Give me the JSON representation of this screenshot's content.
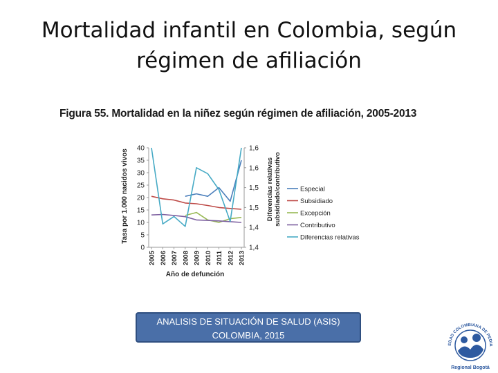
{
  "slide": {
    "title_line1": "Mortalidad infantil en Colombia, según",
    "title_line2": "régimen de afiliación",
    "figure_caption": "Figura 55. Mortalidad en la niñez según régimen de afiliación, 2005-2013",
    "source_line1": "ANALISIS DE SITUACIÓN DE SALUD (ASIS)",
    "source_line2": "COLOMBIA, 2015",
    "logo_text": "SOCIEDAD COLOMBIANA DE PEDIATRÍA",
    "logo_subtitle": "Regional Bogotá"
  },
  "colors": {
    "Especial": "#4a7ebb",
    "Subsidiado": "#be4b48",
    "Excepción": "#98b954",
    "Contributivo": "#7d60a0",
    "Diferencias relativas": "#46aac5",
    "source_box": "#4a6fa8",
    "logo": "#2e5aa0"
  },
  "chart_data": {
    "type": "line",
    "x": [
      "2005",
      "2006",
      "2007",
      "2008",
      "2009",
      "2010",
      "2011",
      "2012",
      "2013"
    ],
    "xlabel": "Año de defunción",
    "ylabel": "Tasa por 1.000 nacidos vivos",
    "ylim": [
      0,
      40
    ],
    "yticks": [
      "0",
      "5",
      "10",
      "15",
      "20",
      "25",
      "30",
      "35",
      "40"
    ],
    "y2label": "Diferencias relativas subsidiado/contributivo",
    "y2lim": [
      1.4,
      1.6
    ],
    "y2ticks": [
      "1,4",
      "1,4",
      "1,5",
      "1,5",
      "1,6",
      "1,6"
    ],
    "legend_position": "right",
    "series": [
      {
        "name": "Especial",
        "axis": "left",
        "values": [
          null,
          null,
          null,
          20.5,
          21.5,
          20.5,
          24,
          18.5,
          35
        ]
      },
      {
        "name": "Subsidiado",
        "axis": "left",
        "values": [
          20.5,
          19.5,
          19,
          17.8,
          17.5,
          16.8,
          16,
          15.6,
          15.3
        ]
      },
      {
        "name": "Excepción",
        "axis": "left",
        "values": [
          null,
          null,
          null,
          12.8,
          14,
          11,
          10,
          11.5,
          12
        ]
      },
      {
        "name": "Contributivo",
        "axis": "left",
        "values": [
          13,
          13.2,
          12.8,
          12.3,
          11,
          10.8,
          10.6,
          10.3,
          10
        ]
      },
      {
        "name": "Diferencias relativas",
        "axis": "right",
        "values": [
          1.6,
          1.447,
          1.462,
          1.442,
          1.56,
          1.548,
          1.516,
          1.452,
          1.6
        ]
      }
    ]
  }
}
